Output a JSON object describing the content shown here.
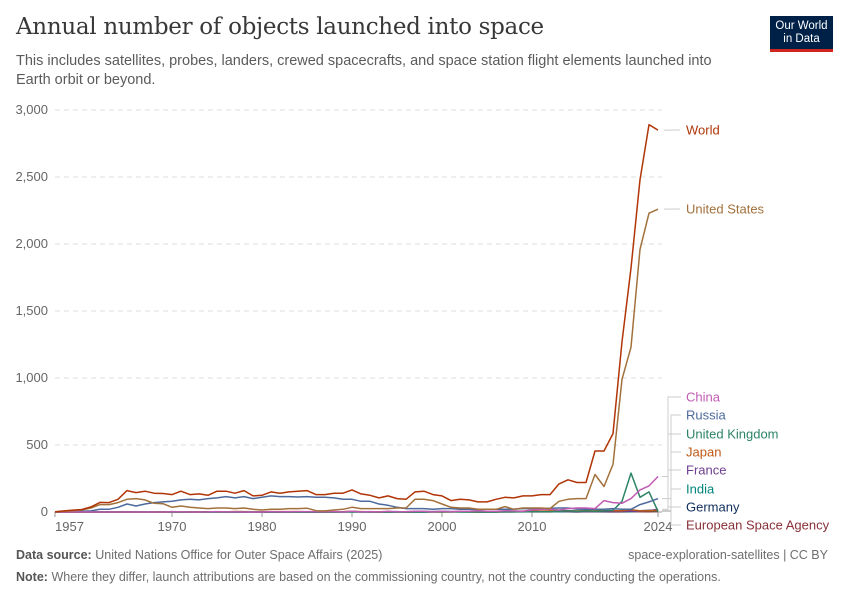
{
  "header": {
    "title": "Annual number of objects launched into space",
    "subtitle": "This includes satellites, probes, landers, crewed spacecrafts, and space station flight elements launched into Earth orbit or beyond.",
    "logo": "Our World in Data",
    "logo_line1": "Our World",
    "logo_line2": "in Data"
  },
  "footer": {
    "source_label": "Data source:",
    "source": "United Nations Office for Outer Space Affairs (2025)",
    "slug": "space-exploration-satellites | CC BY",
    "note_label": "Note:",
    "note": "Where they differ, launch attributions are based on the commissioning country, not the country conducting the operations."
  },
  "chart_data": {
    "type": "line",
    "title": "Annual number of objects launched into space",
    "xlabel": "",
    "ylabel": "",
    "xlim": [
      1957,
      2024
    ],
    "ylim": [
      0,
      3000
    ],
    "grid": "horizontal dashed",
    "legend": "right, line-end labels",
    "x_ticks": [
      "1957",
      "1970",
      "1980",
      "1990",
      "2000",
      "2010",
      "2024"
    ],
    "y_ticks": [
      "0",
      "500",
      "1,000",
      "1,500",
      "2,000",
      "2,500",
      "3,000"
    ],
    "y_tick_values": [
      0,
      500,
      1000,
      1500,
      2000,
      2500,
      3000
    ],
    "x_tick_values": [
      1957,
      1970,
      1980,
      1990,
      2000,
      2010,
      2024
    ],
    "start_year": 1957,
    "series": [
      {
        "name": "European Space Agency",
        "color": "#883039",
        "values": [
          0,
          0,
          0,
          0,
          0,
          0,
          0,
          0,
          0,
          0,
          0,
          0,
          0,
          0,
          0,
          0,
          0,
          0,
          2,
          0,
          2,
          1,
          1,
          0,
          1,
          0,
          1,
          1,
          0,
          1,
          0,
          1,
          1,
          1,
          1,
          1,
          0,
          0,
          1,
          0,
          0,
          0,
          1,
          1,
          0,
          2,
          1,
          0,
          1,
          0,
          1,
          1,
          3,
          1,
          1,
          1,
          3,
          2,
          1,
          3,
          4,
          2,
          1,
          1,
          2,
          3,
          2,
          4
        ]
      },
      {
        "name": "Germany",
        "color": "#102d5e",
        "values": [
          0,
          0,
          0,
          0,
          0,
          0,
          0,
          0,
          0,
          0,
          0,
          0,
          1,
          1,
          0,
          1,
          1,
          1,
          1,
          1,
          0,
          0,
          0,
          0,
          0,
          0,
          0,
          0,
          0,
          0,
          1,
          1,
          1,
          3,
          1,
          2,
          1,
          2,
          1,
          1,
          1,
          1,
          2,
          3,
          2,
          2,
          1,
          1,
          2,
          1,
          3,
          3,
          2,
          4,
          2,
          2,
          3,
          4,
          2,
          3,
          4,
          3,
          4,
          5,
          8,
          10,
          12,
          10
        ]
      },
      {
        "name": "India",
        "color": "#00847e",
        "values": [
          0,
          0,
          0,
          0,
          0,
          0,
          0,
          0,
          0,
          0,
          0,
          0,
          0,
          0,
          0,
          0,
          0,
          0,
          1,
          0,
          0,
          0,
          1,
          1,
          2,
          1,
          1,
          0,
          0,
          0,
          1,
          1,
          0,
          0,
          1,
          1,
          1,
          1,
          1,
          1,
          1,
          0,
          1,
          0,
          2,
          1,
          2,
          1,
          2,
          1,
          3,
          3,
          2,
          3,
          2,
          3,
          2,
          3,
          5,
          7,
          7,
          8,
          6,
          3,
          3,
          8,
          8,
          8
        ]
      },
      {
        "name": "France",
        "color": "#6d3e91",
        "values": [
          0,
          0,
          0,
          0,
          0,
          0,
          0,
          0,
          1,
          2,
          2,
          0,
          0,
          3,
          1,
          0,
          2,
          1,
          2,
          0,
          1,
          0,
          1,
          0,
          1,
          1,
          1,
          2,
          0,
          1,
          1,
          2,
          1,
          3,
          1,
          2,
          0,
          1,
          3,
          1,
          2,
          3,
          3,
          3,
          2,
          3,
          2,
          3,
          1,
          3,
          1,
          2,
          3,
          4,
          2,
          3,
          5,
          4,
          5,
          3,
          4,
          5,
          3,
          4,
          5,
          7,
          10,
          20
        ]
      },
      {
        "name": "Japan",
        "color": "#be5915",
        "values": [
          0,
          0,
          0,
          0,
          0,
          0,
          0,
          0,
          0,
          0,
          0,
          0,
          0,
          1,
          2,
          1,
          1,
          2,
          2,
          1,
          4,
          3,
          2,
          2,
          3,
          3,
          3,
          3,
          1,
          3,
          2,
          2,
          3,
          5,
          3,
          1,
          2,
          2,
          2,
          2,
          2,
          2,
          1,
          1,
          2,
          3,
          3,
          0,
          6,
          6,
          4,
          4,
          7,
          8,
          5,
          8,
          8,
          10,
          8,
          10,
          8,
          12,
          10,
          10,
          18,
          8,
          10,
          12
        ]
      },
      {
        "name": "United Kingdom",
        "color": "#2c8465",
        "values": [
          0,
          0,
          0,
          0,
          0,
          1,
          0,
          0,
          0,
          0,
          1,
          0,
          0,
          0,
          1,
          0,
          0,
          1,
          0,
          0,
          0,
          0,
          1,
          0,
          1,
          0,
          0,
          0,
          0,
          0,
          0,
          0,
          1,
          1,
          1,
          0,
          0,
          0,
          0,
          0,
          1,
          2,
          3,
          4,
          3,
          1,
          2,
          1,
          2,
          1,
          1,
          1,
          1,
          2,
          2,
          2,
          5,
          10,
          5,
          8,
          6,
          8,
          12,
          80,
          290,
          110,
          150,
          5
        ]
      },
      {
        "name": "Russia",
        "color": "#4c6a9c",
        "values": [
          2,
          1,
          3,
          5,
          8,
          20,
          20,
          35,
          60,
          45,
          60,
          70,
          75,
          80,
          90,
          95,
          90,
          100,
          105,
          115,
          105,
          115,
          100,
          110,
          120,
          115,
          115,
          112,
          115,
          110,
          110,
          105,
          95,
          95,
          80,
          80,
          60,
          50,
          35,
          25,
          25,
          25,
          20,
          25,
          25,
          20,
          20,
          18,
          20,
          20,
          20,
          22,
          25,
          25,
          25,
          28,
          30,
          30,
          22,
          20,
          20,
          20,
          25,
          20,
          20,
          55,
          75,
          100
        ]
      },
      {
        "name": "China",
        "color": "#c15cb3",
        "values": [
          0,
          0,
          0,
          0,
          0,
          0,
          0,
          0,
          0,
          0,
          0,
          0,
          0,
          1,
          1,
          0,
          0,
          1,
          3,
          1,
          1,
          0,
          0,
          0,
          3,
          1,
          2,
          3,
          3,
          2,
          2,
          4,
          0,
          5,
          1,
          3,
          1,
          5,
          2,
          3,
          6,
          6,
          1,
          5,
          3,
          5,
          6,
          10,
          5,
          6,
          10,
          8,
          6,
          16,
          19,
          20,
          15,
          25,
          30,
          30,
          25,
          85,
          70,
          65,
          100,
          165,
          195,
          265
        ]
      },
      {
        "name": "United States",
        "color": "#a2713b",
        "values": [
          0,
          5,
          10,
          16,
          30,
          55,
          55,
          70,
          95,
          100,
          90,
          65,
          62,
          35,
          45,
          35,
          30,
          25,
          30,
          30,
          25,
          30,
          20,
          15,
          20,
          20,
          25,
          25,
          28,
          10,
          8,
          15,
          20,
          35,
          25,
          25,
          25,
          25,
          30,
          30,
          95,
          95,
          85,
          60,
          35,
          30,
          30,
          20,
          20,
          20,
          40,
          20,
          30,
          30,
          30,
          25,
          80,
          95,
          100,
          100,
          280,
          190,
          355,
          990,
          1230,
          1960,
          2230,
          2260
        ]
      },
      {
        "name": "World",
        "color": "#b13507",
        "values": [
          2,
          8,
          14,
          19,
          38,
          72,
          70,
          95,
          160,
          145,
          155,
          140,
          138,
          130,
          155,
          130,
          135,
          125,
          155,
          155,
          140,
          160,
          120,
          125,
          150,
          140,
          150,
          155,
          160,
          130,
          130,
          140,
          140,
          165,
          135,
          125,
          105,
          120,
          100,
          95,
          150,
          155,
          130,
          120,
          85,
          95,
          90,
          75,
          75,
          95,
          110,
          105,
          120,
          120,
          130,
          130,
          210,
          240,
          220,
          220,
          455,
          455,
          585,
          1270,
          1820,
          2480,
          2890,
          2850
        ]
      }
    ]
  }
}
